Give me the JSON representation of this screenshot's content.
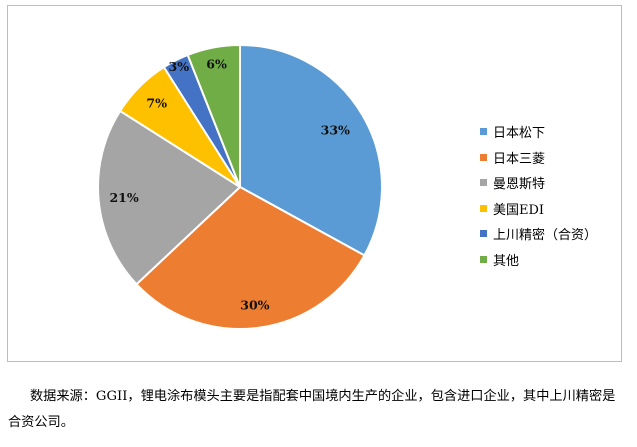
{
  "chart_data": {
    "type": "pie",
    "categories": [
      "日本松下",
      "日本三菱",
      "曼恩斯特",
      "美国EDI",
      "上川精密（合资）",
      "其他"
    ],
    "values": [
      33,
      30,
      21,
      7,
      3,
      6
    ],
    "labels": [
      "33%",
      "30%",
      "21%",
      "7%",
      "3%",
      "6%"
    ],
    "colors": [
      "#5B9BD5",
      "#ED7D31",
      "#A5A5A5",
      "#FFC000",
      "#4472C4",
      "#70AD47"
    ],
    "legend_position": "right",
    "title": ""
  },
  "caption": "数据来源：GGII，锂电涂布模头主要是指配套中国境内生产的企业，包含进口企业，其中上川精密是合资公司。"
}
